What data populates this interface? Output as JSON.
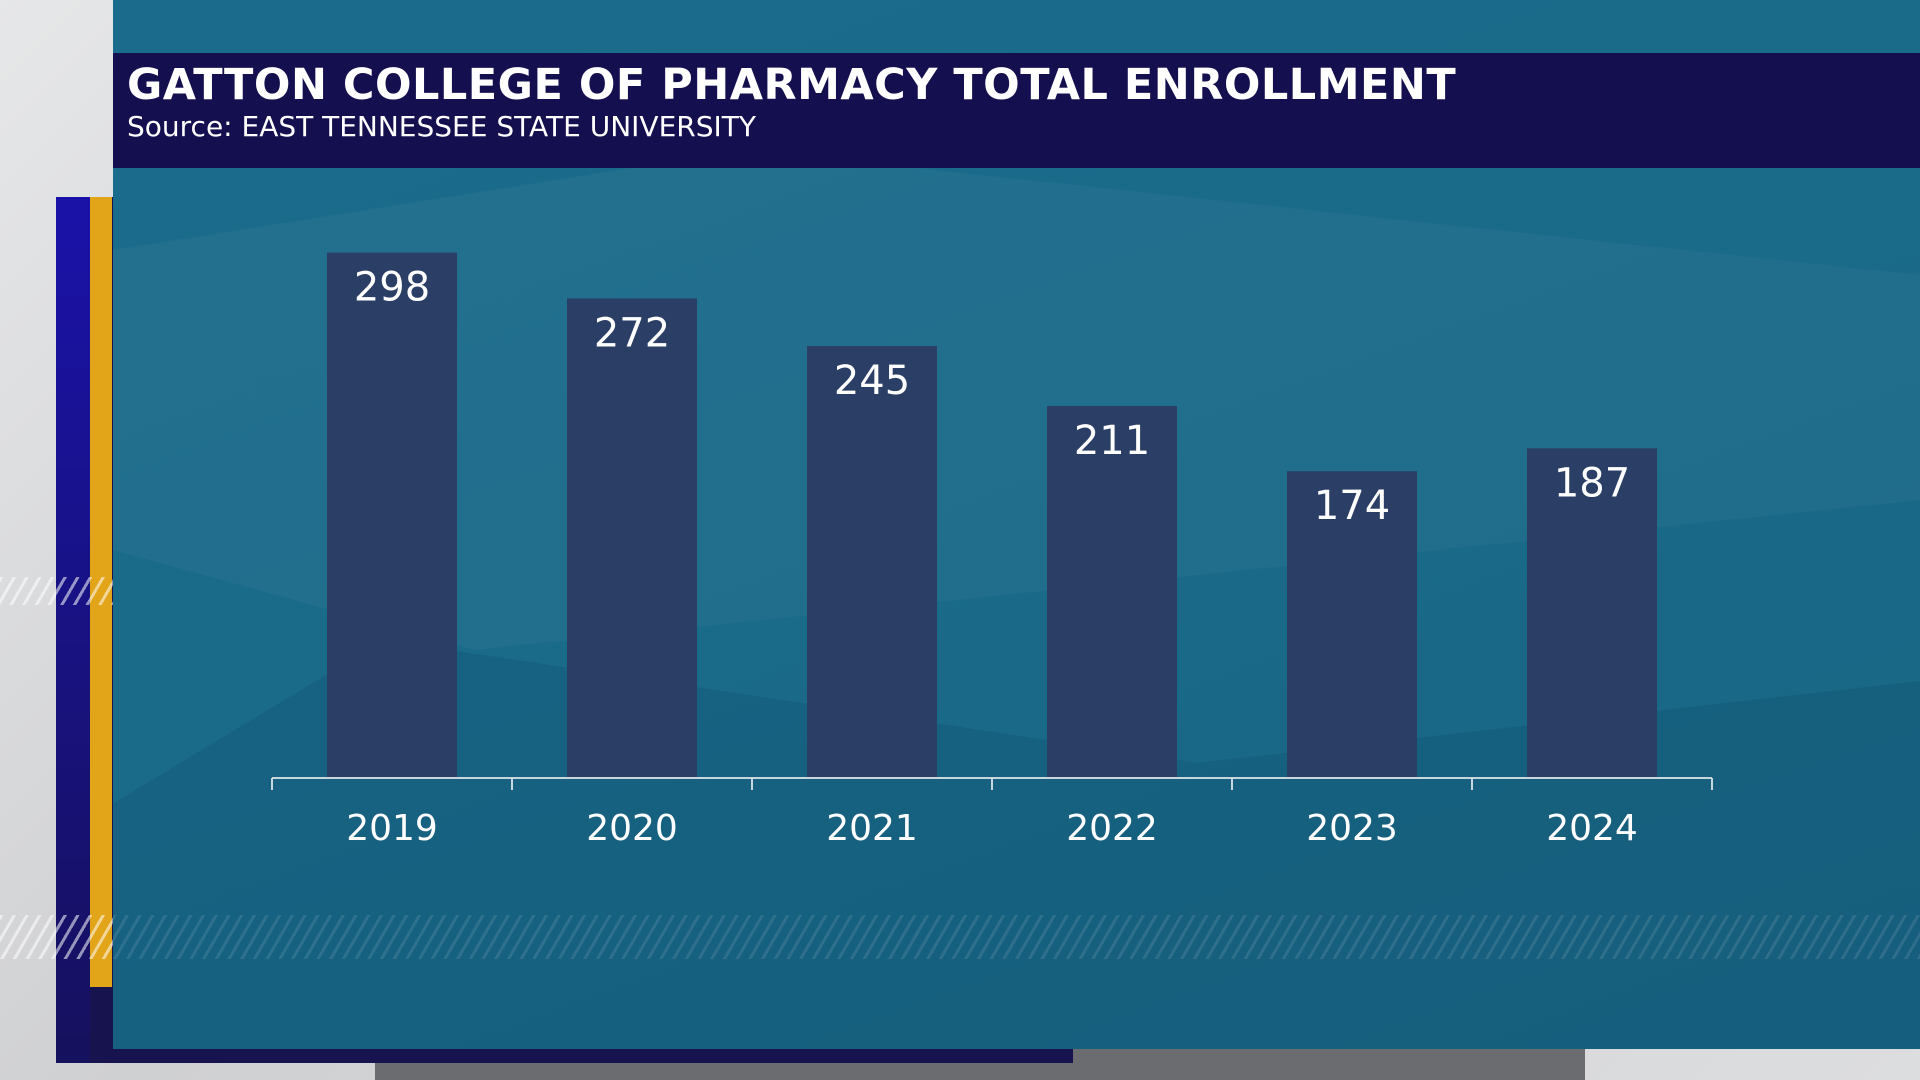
{
  "header": {
    "title": "GATTON COLLEGE OF PHARMACY TOTAL ENROLLMENT",
    "source": "Source: EAST TENNESSEE STATE UNIVERSITY"
  },
  "colors": {
    "bar": "#2b3e65",
    "panel": "#1a6a8a",
    "header_band": "#140f4e",
    "accent_gold": "#e2a419",
    "accent_blue": "#1a12a8"
  },
  "chart_data": {
    "type": "bar",
    "title": "GATTON COLLEGE OF PHARMACY TOTAL ENROLLMENT",
    "subtitle": "Source: EAST TENNESSEE STATE UNIVERSITY",
    "categories": [
      "2019",
      "2020",
      "2021",
      "2022",
      "2023",
      "2024"
    ],
    "values": [
      298,
      272,
      245,
      211,
      174,
      187
    ],
    "xlabel": "",
    "ylabel": "",
    "ylim": [
      0,
      300
    ],
    "grid": false,
    "legend": "none",
    "data_labels": true
  }
}
